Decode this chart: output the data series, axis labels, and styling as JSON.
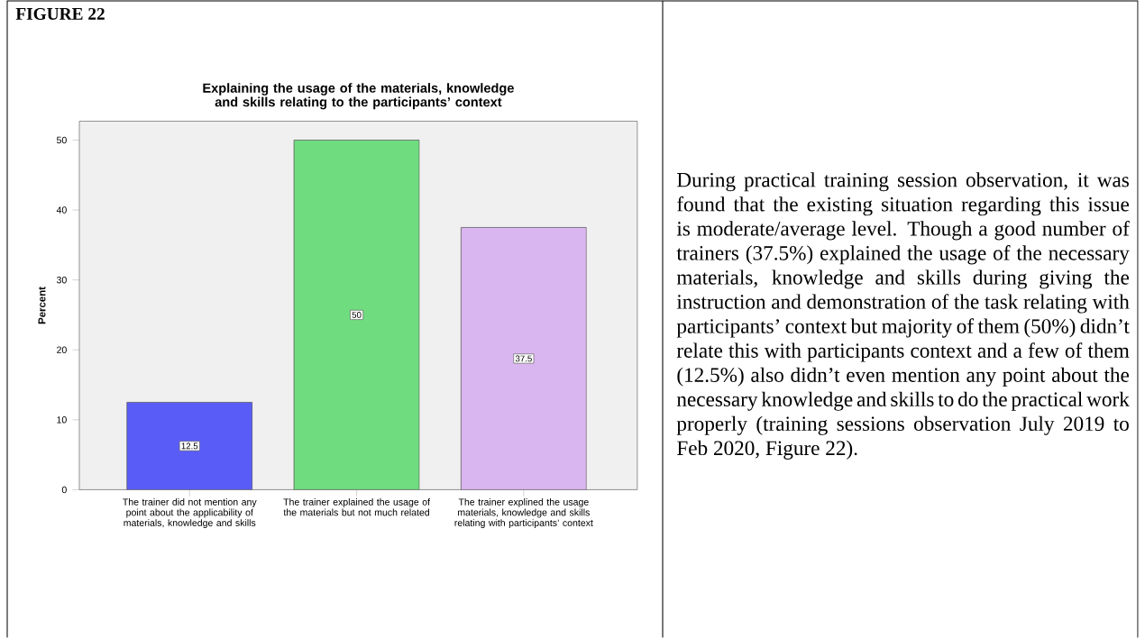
{
  "chart_data": {
    "type": "bar",
    "title": "Explaining the usage of the materials, knowledge and skills relating to the participants’ context",
    "ylabel": "Percent",
    "categories": [
      "The trainer did not mention any point about the  applicability of materials, knowledge and skills",
      "The trainer explained the usage of the materials but not much related",
      "The trainer explined the usage materials, knowledge and skills relating with participants’ context"
    ],
    "values": [
      12.5,
      50,
      37.5
    ],
    "colors": [
      "#5a5cf8",
      "#70dc80",
      "#dab6f0"
    ],
    "ylim": [
      0,
      52.7
    ],
    "yticks": [
      0,
      10,
      20,
      30,
      40,
      50
    ],
    "data_labels": true,
    "grid": false,
    "annotations": [
      "FIGURE 22",
      "During practical training session observation, it was found that the existing situation regarding this issue is moderate/average level. Though a good number of trainers  (37.5%) explained the usage of the necessary materials, knowledge and skills during giving the instruction and demonstration of the task relating with participants’ context but majority of them (50%) didn’t relate this with participants context and a few of them (12.5%) also didn’t even mention any point about the necessary knowledge and skills to do the practical work properly (training sessions observation July 2019 to Feb 2020, Figure 22)."
    ]
  }
}
